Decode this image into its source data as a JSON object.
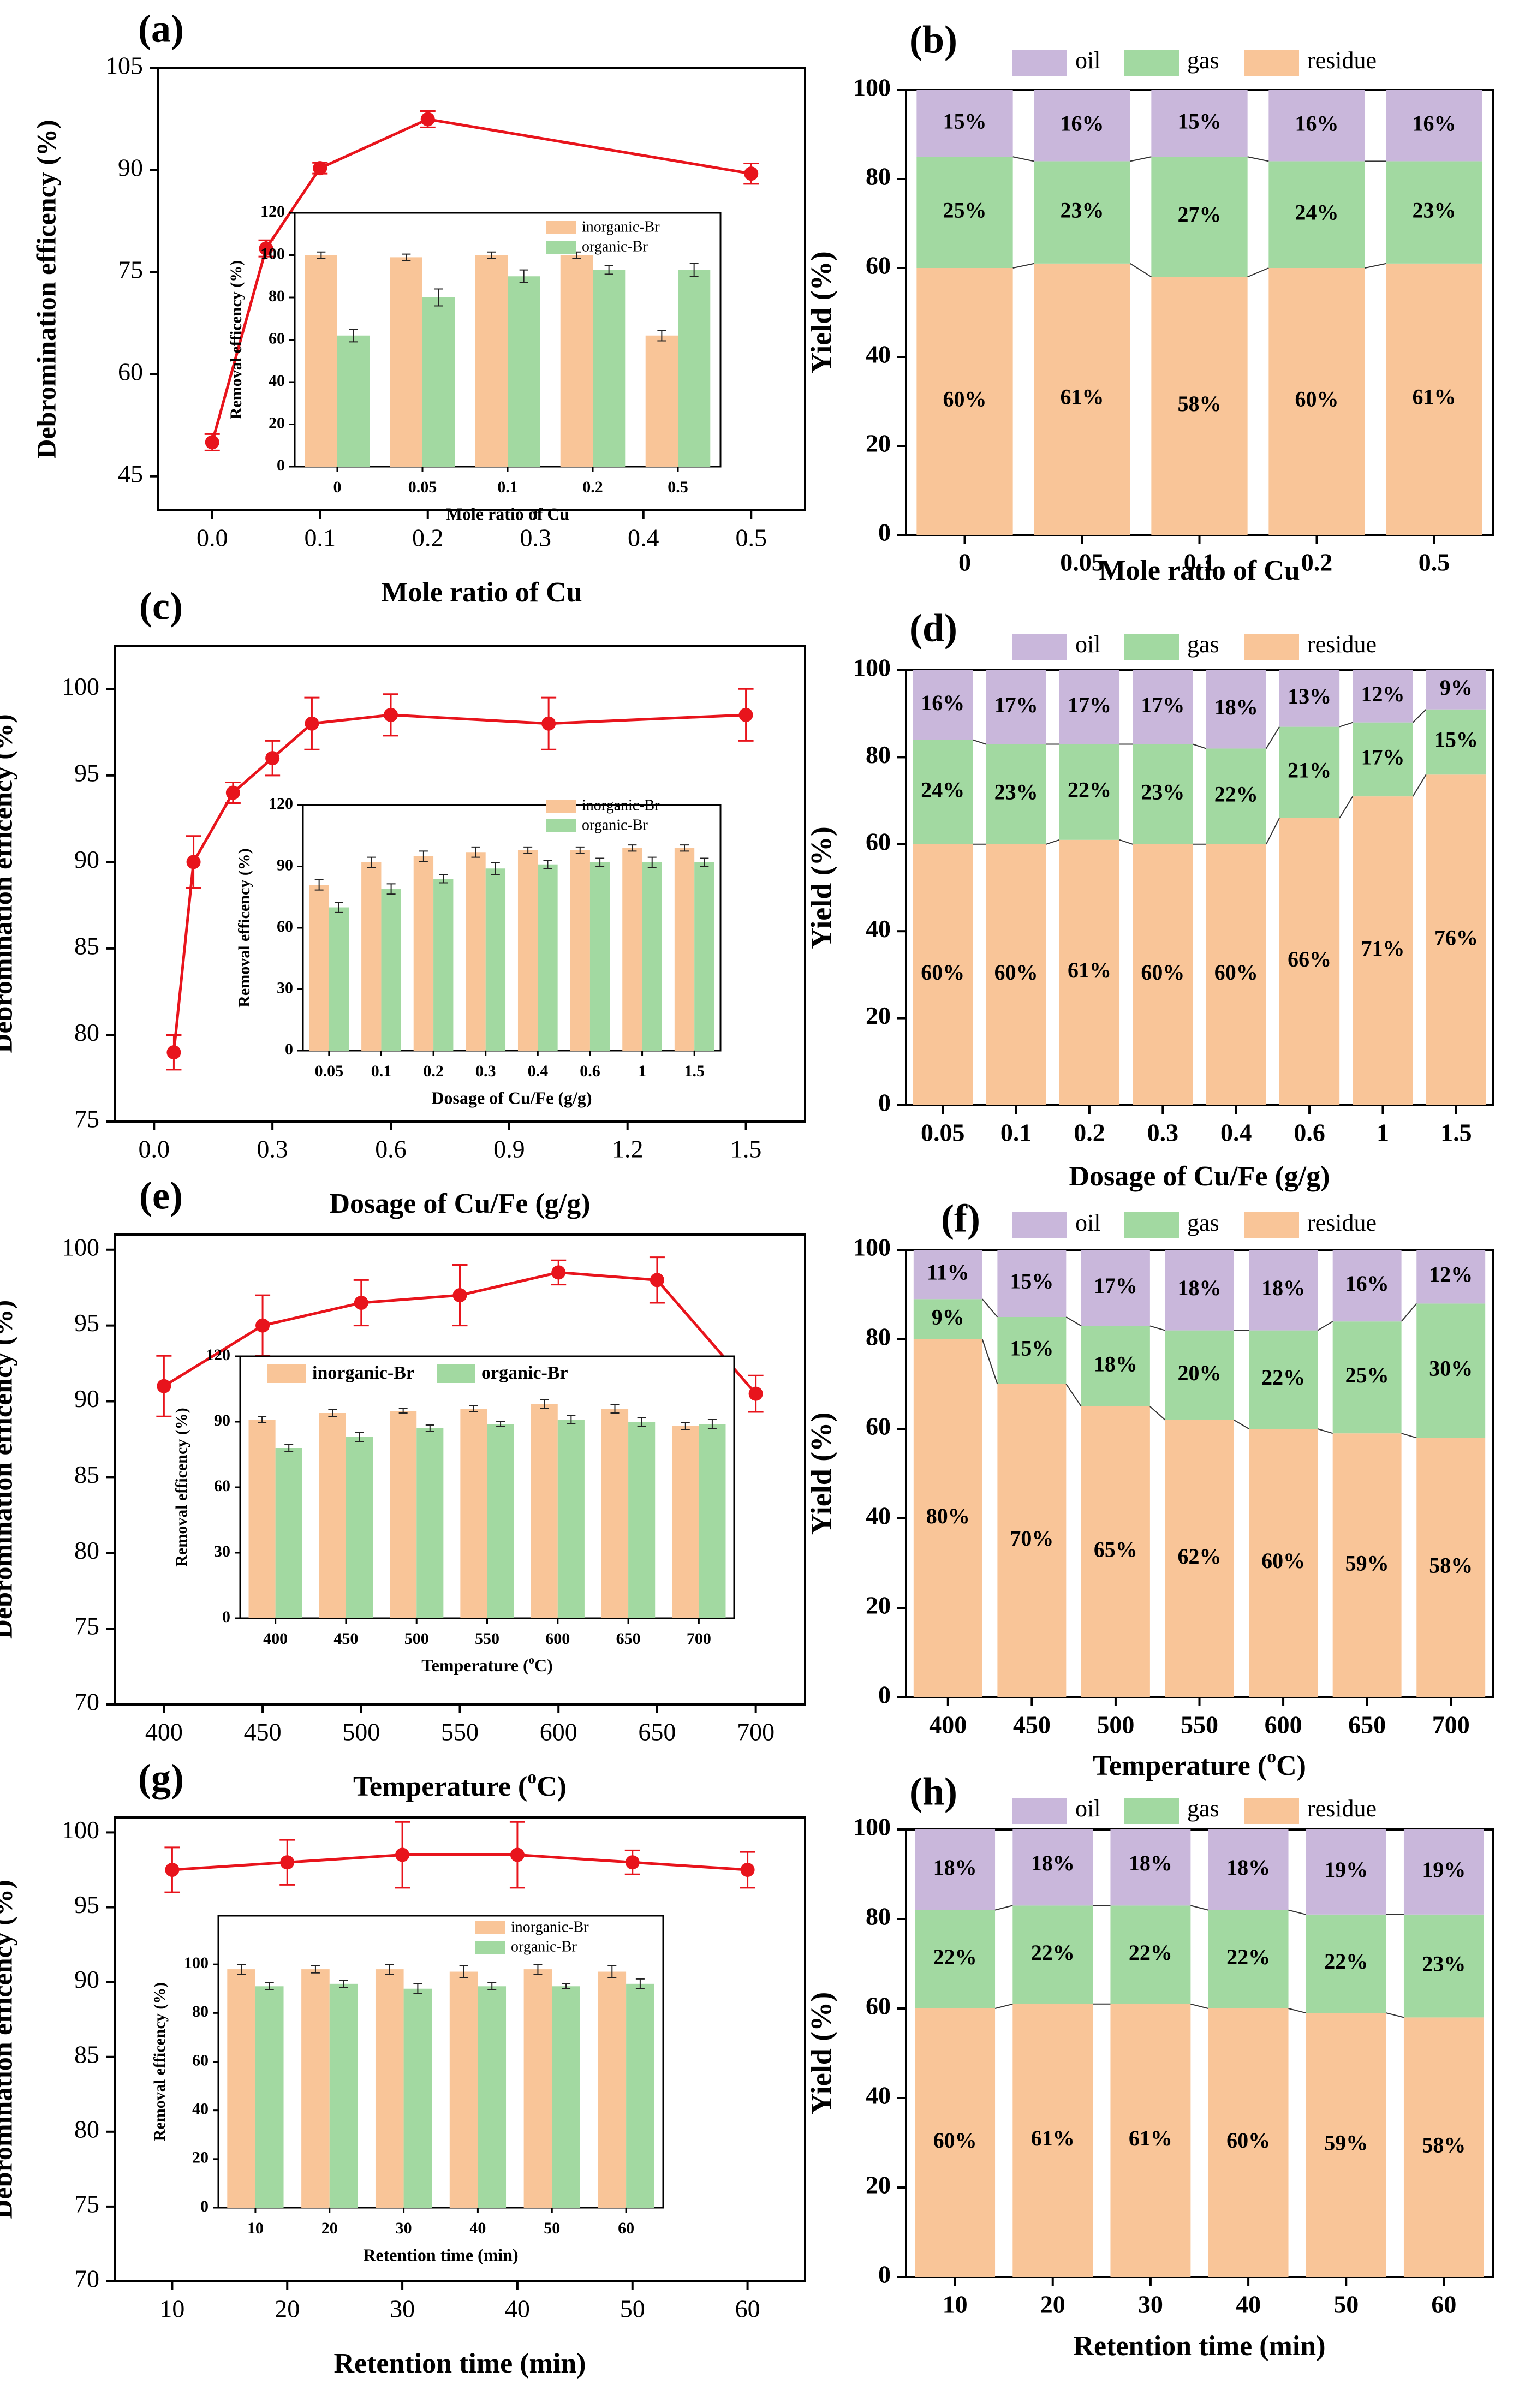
{
  "colors": {
    "line": "#e8141c",
    "inorganic": "#f9c598",
    "organic": "#a2d9a1",
    "oil": "#c9b7db",
    "gas": "#a2d9a1",
    "residue": "#f9c598",
    "axis": "#000000"
  },
  "panels": [
    {
      "label": "(a)",
      "xlabel": "Mole ratio of Cu",
      "ylabel": "Debromination efficency (%)",
      "x": [
        0,
        0.05,
        0.1,
        0.2,
        0.5
      ],
      "y": [
        50,
        78.5,
        90.3,
        97.5,
        89.5
      ],
      "yerr": [
        1.2,
        1.2,
        0.8,
        1.2,
        1.5
      ],
      "xlim": [
        -0.05,
        0.55
      ],
      "ylim": [
        40,
        105
      ],
      "xticks": [
        0.0,
        0.1,
        0.2,
        0.3,
        0.4,
        0.5
      ],
      "xtick_labels": [
        "0.0",
        "0.1",
        "0.2",
        "0.3",
        "0.4",
        "0.5"
      ],
      "yticks": [
        45,
        60,
        75,
        90,
        105
      ],
      "inset": {
        "categories": [
          "0",
          "0.05",
          "0.1",
          "0.2",
          "0.5"
        ],
        "inorganic": [
          100,
          99,
          100,
          100,
          62
        ],
        "organic": [
          62,
          80,
          90,
          93,
          93
        ],
        "err_in": [
          1.5,
          1.5,
          1.5,
          1.5,
          2.5
        ],
        "err_org": [
          3,
          4,
          3,
          2,
          3
        ],
        "ylim": [
          0,
          120
        ],
        "yticks": [
          0,
          20,
          40,
          60,
          80,
          100,
          120
        ],
        "xlabel": "Mole ratio of Cu",
        "ylabel": "Removal efficency (%)",
        "legend": [
          "inorganic-Br",
          "organic-Br"
        ],
        "legend_style": "vertical"
      }
    },
    {
      "label": "(c)",
      "xlabel": "Dosage of Cu/Fe (g/g)",
      "ylabel": "Debromination efficency (%)",
      "x": [
        0.05,
        0.1,
        0.2,
        0.3,
        0.4,
        0.6,
        1.0,
        1.5
      ],
      "y": [
        79,
        90,
        94,
        96,
        98,
        98.5,
        98,
        98.5
      ],
      "yerr": [
        1,
        1.5,
        0.6,
        1,
        1.5,
        1.2,
        1.5,
        1.5
      ],
      "xlim": [
        -0.1,
        1.65
      ],
      "ylim": [
        75,
        102.5
      ],
      "xticks": [
        0.0,
        0.3,
        0.6,
        0.9,
        1.2,
        1.5
      ],
      "xtick_labels": [
        "0.0",
        "0.3",
        "0.6",
        "0.9",
        "1.2",
        "1.5"
      ],
      "yticks": [
        75,
        80,
        85,
        90,
        95,
        100
      ],
      "inset": {
        "categories": [
          "0.05",
          "0.1",
          "0.2",
          "0.3",
          "0.4",
          "0.6",
          "1",
          "1.5"
        ],
        "inorganic": [
          81,
          92,
          95,
          97,
          98,
          98,
          99,
          99
        ],
        "organic": [
          70,
          79,
          84,
          89,
          91,
          92,
          92,
          92
        ],
        "err_in": [
          2.5,
          2.5,
          2.5,
          2.5,
          1.5,
          1.5,
          1.5,
          1.5
        ],
        "err_org": [
          2.5,
          2.5,
          2,
          3,
          2,
          2,
          2.5,
          2
        ],
        "ylim": [
          0,
          120
        ],
        "yticks": [
          0,
          30,
          60,
          90,
          120
        ],
        "xlabel": "Dosage of Cu/Fe (g/g)",
        "ylabel": "Removal efficency (%)",
        "legend": [
          "inorganic-Br",
          "organic-Br"
        ],
        "legend_style": "vertical"
      }
    },
    {
      "label": "(e)",
      "xlabel": "Temperature (oC)",
      "ylabel": "Debromination efficency (%)",
      "x": [
        400,
        450,
        500,
        550,
        600,
        650,
        700
      ],
      "y": [
        91,
        95,
        96.5,
        97,
        98.5,
        98,
        90.5
      ],
      "yerr": [
        2,
        2,
        1.5,
        2,
        0.8,
        1.5,
        1.2
      ],
      "xlim": [
        375,
        725
      ],
      "ylim": [
        70,
        101
      ],
      "xticks": [
        400,
        450,
        500,
        550,
        600,
        650,
        700
      ],
      "xtick_labels": [
        "400",
        "450",
        "500",
        "550",
        "600",
        "650",
        "700"
      ],
      "yticks": [
        70,
        75,
        80,
        85,
        90,
        95,
        100
      ],
      "inset": {
        "categories": [
          "400",
          "450",
          "500",
          "550",
          "600",
          "650",
          "700"
        ],
        "inorganic": [
          91,
          94,
          95,
          96,
          98,
          96,
          88
        ],
        "organic": [
          78,
          83,
          87,
          89,
          91,
          90,
          89
        ],
        "err_in": [
          1.5,
          1.5,
          1,
          1.5,
          2,
          2,
          1.5
        ],
        "err_org": [
          1.5,
          2,
          1.5,
          1,
          2,
          2,
          2
        ],
        "ylim": [
          0,
          120
        ],
        "yticks": [
          0,
          30,
          60,
          90,
          120
        ],
        "xlabel": "Temperature (oC)",
        "ylabel": "Removal efficency (%)",
        "legend": [
          "inorganic-Br",
          "organic-Br"
        ],
        "legend_style": "horizontal"
      }
    },
    {
      "label": "(g)",
      "xlabel": "Retention time (min)",
      "ylabel": "Debromination efficency (%)",
      "x": [
        10,
        20,
        30,
        40,
        50,
        60
      ],
      "y": [
        97.5,
        98,
        98.5,
        98.5,
        98,
        97.5
      ],
      "yerr": [
        1.5,
        1.5,
        2.2,
        2.2,
        0.8,
        1.2
      ],
      "xlim": [
        5,
        65
      ],
      "ylim": [
        70,
        101
      ],
      "xticks": [
        10,
        20,
        30,
        40,
        50,
        60
      ],
      "xtick_labels": [
        "10",
        "20",
        "30",
        "40",
        "50",
        "60"
      ],
      "yticks": [
        70,
        75,
        80,
        85,
        90,
        95,
        100
      ],
      "inset": {
        "categories": [
          "10",
          "20",
          "30",
          "40",
          "50",
          "60"
        ],
        "inorganic": [
          98,
          98,
          98,
          97,
          98,
          97
        ],
        "organic": [
          91,
          92,
          90,
          91,
          91,
          92
        ],
        "err_in": [
          2,
          1.5,
          2,
          2.5,
          2,
          2.5
        ],
        "err_org": [
          1.5,
          1.5,
          2,
          1.5,
          1,
          2
        ],
        "ylim": [
          0,
          120
        ],
        "yticks": [
          0,
          20,
          40,
          60,
          80,
          100
        ],
        "xlabel": "Retention time (min)",
        "ylabel": "Removal efficency (%)",
        "legend": [
          "inorganic-Br",
          "organic-Br"
        ],
        "legend_style": "vertical"
      }
    }
  ],
  "bars": [
    {
      "label": "(b)",
      "xlabel": "Mole ratio of Cu",
      "ylabel": "Yield (%)",
      "categories": [
        "0",
        "0.05",
        "0.1",
        "0.2",
        "0.5"
      ],
      "residue": [
        60,
        61,
        58,
        60,
        61
      ],
      "gas": [
        25,
        23,
        27,
        24,
        23
      ],
      "oil": [
        15,
        16,
        15,
        16,
        16
      ],
      "residue_labels": [
        "60%",
        "61%",
        "58%",
        "60%",
        "61%"
      ],
      "gas_labels": [
        "25%",
        "23%",
        "27%",
        "24%",
        "23%"
      ],
      "oil_labels": [
        "15%",
        "16%",
        "15%",
        "16%",
        "16%"
      ],
      "yticks": [
        0,
        20,
        40,
        60,
        80,
        100
      ]
    },
    {
      "label": "(d)",
      "xlabel": "Dosage of Cu/Fe (g/g)",
      "ylabel": "Yield (%)",
      "categories": [
        "0.05",
        "0.1",
        "0.2",
        "0.3",
        "0.4",
        "0.6",
        "1",
        "1.5"
      ],
      "residue": [
        60,
        60,
        61,
        60,
        60,
        66,
        71,
        76
      ],
      "gas": [
        24,
        23,
        22,
        23,
        22,
        21,
        17,
        15
      ],
      "oil": [
        16,
        17,
        17,
        17,
        18,
        13,
        12,
        9
      ],
      "residue_labels": [
        "60%",
        "60%",
        "61%",
        "60%",
        "60%",
        "66%",
        "71%",
        "76%"
      ],
      "gas_labels": [
        "24%",
        "23%",
        "22%",
        "23%",
        "22%",
        "21%",
        "17%",
        "15%"
      ],
      "oil_labels": [
        "16%",
        "17%",
        "17%",
        "17%",
        "18%",
        "13%",
        "12%",
        "9%"
      ],
      "yticks": [
        0,
        20,
        40,
        60,
        80,
        100
      ]
    },
    {
      "label": "(f)",
      "xlabel": "Temperature (oC)",
      "ylabel": "Yield (%)",
      "categories": [
        "400",
        "450",
        "500",
        "550",
        "600",
        "650",
        "700"
      ],
      "residue": [
        80,
        70,
        65,
        62,
        60,
        59,
        58
      ],
      "gas": [
        9,
        15,
        18,
        20,
        22,
        25,
        30
      ],
      "oil": [
        11,
        15,
        17,
        18,
        18,
        16,
        12
      ],
      "residue_labels": [
        "80%",
        "70%",
        "65%",
        "62%",
        "60%",
        "59%",
        "58%"
      ],
      "gas_labels": [
        "9%",
        "15%",
        "18%",
        "20%",
        "22%",
        "25%",
        "30%"
      ],
      "oil_labels": [
        "11%",
        "15%",
        "17%",
        "18%",
        "18%",
        "16%",
        "12%"
      ],
      "yticks": [
        0,
        20,
        40,
        60,
        80,
        100
      ]
    },
    {
      "label": "(h)",
      "xlabel": "Retention time (min)",
      "ylabel": "Yield (%)",
      "categories": [
        "10",
        "20",
        "30",
        "40",
        "50",
        "60"
      ],
      "residue": [
        60,
        61,
        61,
        60,
        59,
        58
      ],
      "gas": [
        22,
        22,
        22,
        22,
        22,
        23
      ],
      "oil": [
        18,
        18,
        18,
        18,
        19,
        19
      ],
      "residue_labels": [
        "60%",
        "61%",
        "61%",
        "60%",
        "59%",
        "58%"
      ],
      "gas_labels": [
        "22%",
        "22%",
        "22%",
        "22%",
        "22%",
        "23%"
      ],
      "oil_labels": [
        "18%",
        "18%",
        "18%",
        "18%",
        "19%",
        "19%"
      ],
      "yticks": [
        0,
        20,
        40,
        60,
        80,
        100
      ]
    }
  ],
  "bar_legend": [
    "oil",
    "gas",
    "residue"
  ],
  "chart_data": [
    {
      "type": "line",
      "title": "(a)",
      "xlabel": "Mole ratio of Cu",
      "ylabel": "Debromination efficency (%)",
      "x": [
        0,
        0.05,
        0.1,
        0.2,
        0.5
      ],
      "y": [
        50,
        78.5,
        90.3,
        97.5,
        89.5
      ],
      "ylim": [
        40,
        105
      ]
    },
    {
      "type": "bar",
      "title": "(a) inset",
      "categories": [
        "0",
        "0.05",
        "0.1",
        "0.2",
        "0.5"
      ],
      "series": [
        {
          "name": "inorganic-Br",
          "values": [
            100,
            99,
            100,
            100,
            62
          ]
        },
        {
          "name": "organic-Br",
          "values": [
            62,
            80,
            90,
            93,
            93
          ]
        }
      ],
      "ylim": [
        0,
        120
      ]
    },
    {
      "type": "bar",
      "title": "(b)",
      "categories": [
        "0",
        "0.05",
        "0.1",
        "0.2",
        "0.5"
      ],
      "series": [
        {
          "name": "residue",
          "values": [
            60,
            61,
            58,
            60,
            61
          ]
        },
        {
          "name": "gas",
          "values": [
            25,
            23,
            27,
            24,
            23
          ]
        },
        {
          "name": "oil",
          "values": [
            15,
            16,
            15,
            16,
            16
          ]
        }
      ],
      "ylim": [
        0,
        100
      ]
    },
    {
      "type": "line",
      "title": "(c)",
      "xlabel": "Dosage of Cu/Fe (g/g)",
      "ylabel": "Debromination efficency (%)",
      "x": [
        0.05,
        0.1,
        0.2,
        0.3,
        0.4,
        0.6,
        1.0,
        1.5
      ],
      "y": [
        79,
        90,
        94,
        96,
        98,
        98.5,
        98,
        98.5
      ],
      "ylim": [
        75,
        102.5
      ]
    },
    {
      "type": "bar",
      "title": "(c) inset",
      "categories": [
        "0.05",
        "0.1",
        "0.2",
        "0.3",
        "0.4",
        "0.6",
        "1",
        "1.5"
      ],
      "series": [
        {
          "name": "inorganic-Br",
          "values": [
            81,
            92,
            95,
            97,
            98,
            98,
            99,
            99
          ]
        },
        {
          "name": "organic-Br",
          "values": [
            70,
            79,
            84,
            89,
            91,
            92,
            92,
            92
          ]
        }
      ],
      "ylim": [
        0,
        120
      ]
    },
    {
      "type": "bar",
      "title": "(d)",
      "categories": [
        "0.05",
        "0.1",
        "0.2",
        "0.3",
        "0.4",
        "0.6",
        "1",
        "1.5"
      ],
      "series": [
        {
          "name": "residue",
          "values": [
            60,
            60,
            61,
            60,
            60,
            66,
            71,
            76
          ]
        },
        {
          "name": "gas",
          "values": [
            24,
            23,
            22,
            23,
            22,
            21,
            17,
            15
          ]
        },
        {
          "name": "oil",
          "values": [
            16,
            17,
            17,
            17,
            18,
            13,
            12,
            9
          ]
        }
      ],
      "ylim": [
        0,
        100
      ]
    },
    {
      "type": "line",
      "title": "(e)",
      "xlabel": "Temperature (oC)",
      "ylabel": "Debromination efficency (%)",
      "x": [
        400,
        450,
        500,
        550,
        600,
        650,
        700
      ],
      "y": [
        91,
        95,
        96.5,
        97,
        98.5,
        98,
        90.5
      ],
      "ylim": [
        70,
        101
      ]
    },
    {
      "type": "bar",
      "title": "(e) inset",
      "categories": [
        "400",
        "450",
        "500",
        "550",
        "600",
        "650",
        "700"
      ],
      "series": [
        {
          "name": "inorganic-Br",
          "values": [
            91,
            94,
            95,
            96,
            98,
            96,
            88
          ]
        },
        {
          "name": "organic-Br",
          "values": [
            78,
            83,
            87,
            89,
            91,
            90,
            89
          ]
        }
      ],
      "ylim": [
        0,
        120
      ]
    },
    {
      "type": "bar",
      "title": "(f)",
      "categories": [
        "400",
        "450",
        "500",
        "550",
        "600",
        "650",
        "700"
      ],
      "series": [
        {
          "name": "residue",
          "values": [
            80,
            70,
            65,
            62,
            60,
            59,
            58
          ]
        },
        {
          "name": "gas",
          "values": [
            9,
            15,
            18,
            20,
            22,
            25,
            30
          ]
        },
        {
          "name": "oil",
          "values": [
            11,
            15,
            17,
            18,
            18,
            16,
            12
          ]
        }
      ],
      "ylim": [
        0,
        100
      ]
    },
    {
      "type": "line",
      "title": "(g)",
      "xlabel": "Retention time (min)",
      "ylabel": "Debromination efficency (%)",
      "x": [
        10,
        20,
        30,
        40,
        50,
        60
      ],
      "y": [
        97.5,
        98,
        98.5,
        98.5,
        98,
        97.5
      ],
      "ylim": [
        70,
        101
      ]
    },
    {
      "type": "bar",
      "title": "(g) inset",
      "categories": [
        "10",
        "20",
        "30",
        "40",
        "50",
        "60"
      ],
      "series": [
        {
          "name": "inorganic-Br",
          "values": [
            98,
            98,
            98,
            97,
            98,
            97
          ]
        },
        {
          "name": "organic-Br",
          "values": [
            91,
            92,
            90,
            91,
            91,
            92
          ]
        }
      ],
      "ylim": [
        0,
        120
      ]
    },
    {
      "type": "bar",
      "title": "(h)",
      "categories": [
        "10",
        "20",
        "30",
        "40",
        "50",
        "60"
      ],
      "series": [
        {
          "name": "residue",
          "values": [
            60,
            61,
            61,
            60,
            59,
            58
          ]
        },
        {
          "name": "gas",
          "values": [
            22,
            22,
            22,
            22,
            22,
            23
          ]
        },
        {
          "name": "oil",
          "values": [
            18,
            18,
            18,
            18,
            19,
            19
          ]
        }
      ],
      "ylim": [
        0,
        100
      ]
    }
  ]
}
